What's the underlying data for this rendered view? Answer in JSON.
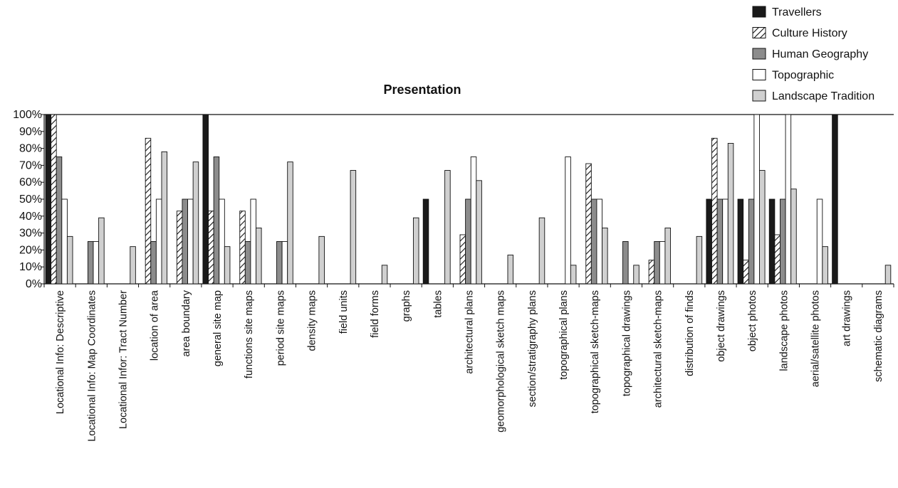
{
  "chart_data": {
    "type": "bar",
    "title": "Presentation",
    "xlabel": "",
    "ylabel": "",
    "ylim": [
      0,
      100
    ],
    "yticks": [
      "0%",
      "10%",
      "20%",
      "30%",
      "40%",
      "50%",
      "60%",
      "70%",
      "80%",
      "90%",
      "100%"
    ],
    "legend_position": "top-right",
    "categories": [
      "Locational Info: Descriptive",
      "Locational Info: Map Coordinates",
      "Locational Infor: Tract Number",
      "location of area",
      "area boundary",
      "general site map",
      "functions site maps",
      "period site maps",
      "density maps",
      "field units",
      "field forms",
      "graphs",
      "tables",
      "architectural plans",
      "geomorphological sketch maps",
      "section/stratigraphy plans",
      "topographical plans",
      "topographical sketch-maps",
      "topographical drawings",
      "architectural sketch-maps",
      "distribution of finds",
      "object drawings",
      "object photos",
      "landscape photos",
      "aerial/satellite photos",
      "art drawings",
      "schematic diagrams"
    ],
    "series": [
      {
        "name": "Travellers",
        "fill": "#1a1a1a",
        "values": [
          100,
          0,
          0,
          0,
          0,
          100,
          0,
          0,
          0,
          0,
          0,
          0,
          50,
          0,
          0,
          0,
          0,
          0,
          0,
          0,
          0,
          50,
          50,
          50,
          0,
          100,
          0
        ]
      },
      {
        "name": "Culture History",
        "fill": "hatch",
        "values": [
          100,
          0,
          0,
          86,
          43,
          43,
          43,
          0,
          0,
          0,
          0,
          0,
          0,
          29,
          0,
          0,
          0,
          71,
          0,
          14,
          0,
          86,
          14,
          29,
          0,
          0,
          0
        ]
      },
      {
        "name": "Human Geography",
        "fill": "#8c8c8c",
        "values": [
          75,
          25,
          0,
          25,
          50,
          75,
          25,
          25,
          0,
          0,
          0,
          0,
          0,
          50,
          0,
          0,
          0,
          50,
          25,
          25,
          0,
          50,
          50,
          50,
          0,
          0,
          0
        ]
      },
      {
        "name": "Topographic",
        "fill": "#ffffff",
        "values": [
          50,
          25,
          0,
          50,
          50,
          50,
          50,
          25,
          0,
          0,
          0,
          0,
          0,
          75,
          0,
          0,
          75,
          50,
          0,
          25,
          0,
          50,
          100,
          100,
          50,
          0,
          0
        ]
      },
      {
        "name": "Landscape Tradition",
        "fill": "#d0d0d0",
        "values": [
          28,
          39,
          22,
          78,
          72,
          22,
          33,
          72,
          28,
          67,
          11,
          39,
          67,
          61,
          17,
          39,
          11,
          33,
          11,
          33,
          28,
          83,
          67,
          56,
          22,
          0,
          11
        ]
      }
    ]
  }
}
